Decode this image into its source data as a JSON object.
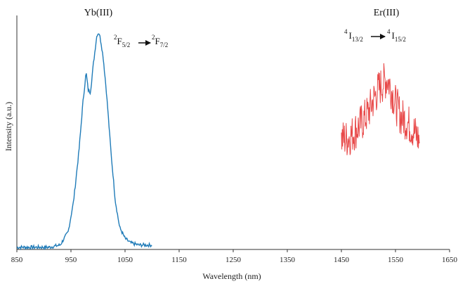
{
  "chart_data": {
    "type": "line",
    "xlabel": "Wavelength (nm)",
    "ylabel": "Intensity (a.u.)",
    "xlim": [
      850,
      1650
    ],
    "ylim": [
      0,
      1
    ],
    "xticks": [
      850,
      950,
      1050,
      1150,
      1250,
      1350,
      1450,
      1550,
      1650
    ],
    "grid": false,
    "legend": "none",
    "series": [
      {
        "color": "#1f7bb8",
        "x": [
          850,
          870,
          890,
          910,
          930,
          945,
          955,
          965,
          972,
          978,
          982,
          986,
          992,
          998,
          1002,
          1006,
          1010,
          1016,
          1024,
          1032,
          1040,
          1050,
          1060,
          1075,
          1090,
          1100
        ],
        "y": [
          0.01,
          0.01,
          0.01,
          0.01,
          0.02,
          0.08,
          0.22,
          0.45,
          0.66,
          0.8,
          0.72,
          0.71,
          0.85,
          0.97,
          0.98,
          0.93,
          0.86,
          0.7,
          0.44,
          0.22,
          0.1,
          0.05,
          0.03,
          0.02,
          0.02,
          0.02
        ]
      },
      {
        "color": "#e84a4a",
        "x": [
          1450,
          1460,
          1470,
          1480,
          1490,
          1500,
          1510,
          1520,
          1530,
          1535,
          1540,
          1550,
          1560,
          1570,
          1580,
          1590,
          1595
        ],
        "y": [
          0.5,
          0.5,
          0.52,
          0.55,
          0.58,
          0.62,
          0.68,
          0.73,
          0.76,
          0.77,
          0.74,
          0.66,
          0.6,
          0.58,
          0.55,
          0.51,
          0.49
        ]
      }
    ]
  },
  "annotations": [
    {
      "id": "yb",
      "label": "Yb(III)",
      "transition": [
        "2",
        "F",
        "5/2",
        "2",
        "F",
        "7/2"
      ]
    },
    {
      "id": "er",
      "label": "Er(III)",
      "transition": [
        "4",
        "I",
        "13/2",
        "4",
        "I",
        "15/2"
      ]
    }
  ]
}
